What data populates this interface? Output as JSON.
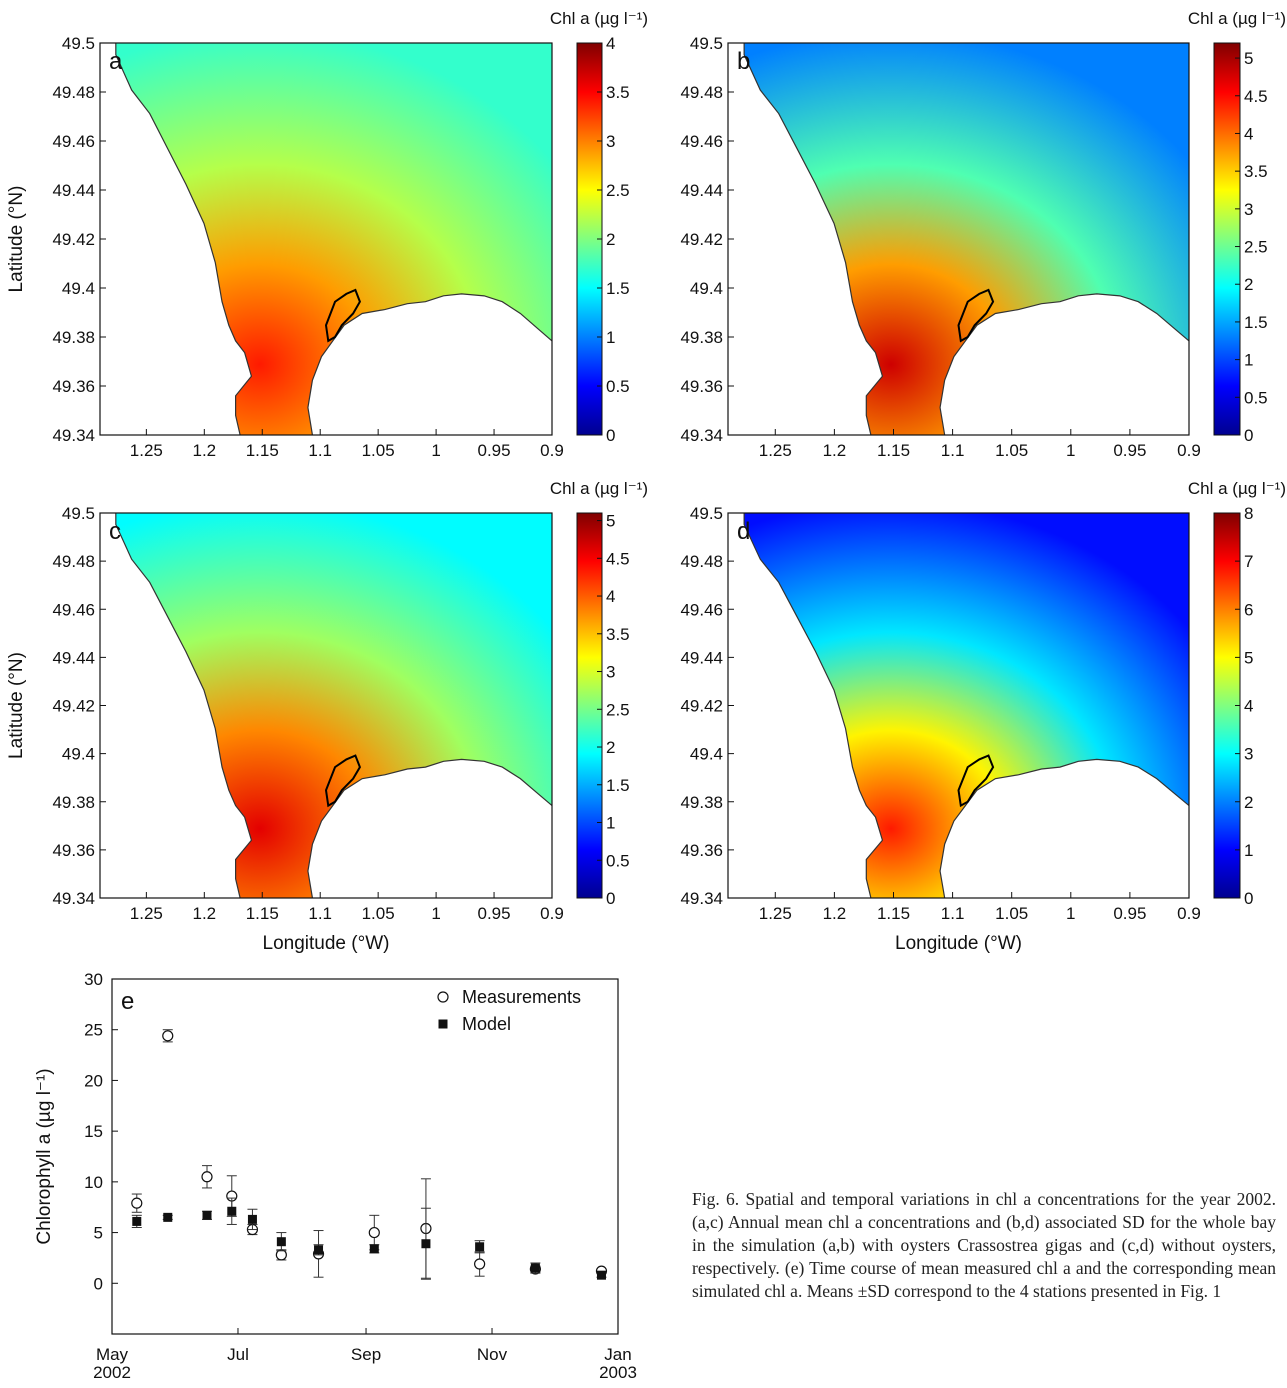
{
  "chart_data": [
    {
      "panel": "a",
      "type": "heatmap",
      "colorbar_title": "Chl a (µg l⁻¹)",
      "colorbar_ticks": [
        "0",
        "0.5",
        "1",
        "1.5",
        "2",
        "2.5",
        "3",
        "3.5",
        "4"
      ],
      "colorbar_range": [
        0,
        4
      ],
      "ylabel": "Latitude (°N)",
      "xlabel": "",
      "xticks": [
        "1.25",
        "1.2",
        "1.15",
        "1.1",
        "1.05",
        "1",
        "0.95",
        "0.9"
      ],
      "yticks": [
        "49.34",
        "49.36",
        "49.38",
        "49.4",
        "49.42",
        "49.44",
        "49.46",
        "49.48",
        "49.5"
      ],
      "xlim": [
        1.29,
        0.9
      ],
      "ylim": [
        49.34,
        49.5
      ],
      "offshore_value": 1.7,
      "nearshore_value": 3.4
    },
    {
      "panel": "b",
      "type": "heatmap",
      "colorbar_title": "Chl a (µg l⁻¹)",
      "colorbar_ticks": [
        "0",
        "0.5",
        "1",
        "1.5",
        "2",
        "2.5",
        "3",
        "3.5",
        "4",
        "4.5",
        "5"
      ],
      "colorbar_range": [
        0,
        5.2
      ],
      "ylabel": "",
      "xlabel": "",
      "xticks": [
        "1.25",
        "1.2",
        "1.15",
        "1.1",
        "1.05",
        "1",
        "0.95",
        "0.9"
      ],
      "yticks": [
        "49.34",
        "49.36",
        "49.38",
        "49.4",
        "49.42",
        "49.44",
        "49.46",
        "49.48",
        "49.5"
      ],
      "xlim": [
        1.29,
        0.9
      ],
      "ylim": [
        49.34,
        49.5
      ],
      "offshore_value": 1.3,
      "nearshore_value": 4.8
    },
    {
      "panel": "c",
      "type": "heatmap",
      "colorbar_title": "Chl a (µg l⁻¹)",
      "colorbar_ticks": [
        "0",
        "0.5",
        "1",
        "1.5",
        "2",
        "2.5",
        "3",
        "3.5",
        "4",
        "4.5",
        "5"
      ],
      "colorbar_range": [
        0,
        5.1
      ],
      "ylabel": "Latitude (°N)",
      "xlabel": "Longitude (°W)",
      "xticks": [
        "1.25",
        "1.2",
        "1.15",
        "1.1",
        "1.05",
        "1",
        "0.95",
        "0.9"
      ],
      "yticks": [
        "49.34",
        "49.36",
        "49.38",
        "49.4",
        "49.42",
        "49.44",
        "49.46",
        "49.48",
        "49.5"
      ],
      "xlim": [
        1.29,
        0.9
      ],
      "ylim": [
        49.34,
        49.5
      ],
      "offshore_value": 1.9,
      "nearshore_value": 4.6
    },
    {
      "panel": "d",
      "type": "heatmap",
      "colorbar_title": "Chl a (µg l⁻¹)",
      "colorbar_ticks": [
        "0",
        "1",
        "2",
        "3",
        "4",
        "5",
        "6",
        "7",
        "8"
      ],
      "colorbar_range": [
        0,
        8
      ],
      "ylabel": "",
      "xlabel": "Longitude (°W)",
      "xticks": [
        "1.25",
        "1.2",
        "1.15",
        "1.1",
        "1.05",
        "1",
        "0.95",
        "0.9"
      ],
      "yticks": [
        "49.34",
        "49.36",
        "49.38",
        "49.4",
        "49.42",
        "49.44",
        "49.46",
        "49.48",
        "49.5"
      ],
      "xlim": [
        1.29,
        0.9
      ],
      "ylim": [
        49.34,
        49.5
      ],
      "offshore_value": 1.1,
      "nearshore_value": 6.8
    },
    {
      "panel": "e",
      "type": "scatter",
      "ylabel": "Chlorophyll a (µg l⁻¹)",
      "xlabel": "",
      "xtick_labels": [
        [
          "May",
          "2002"
        ],
        [
          "Jul",
          ""
        ],
        [
          "Sep",
          ""
        ],
        [
          "Nov",
          ""
        ],
        [
          "Jan",
          "2003"
        ]
      ],
      "xtick_dates": [
        "2002-05-01",
        "2002-07-01",
        "2002-09-01",
        "2002-11-01",
        "2003-01-01"
      ],
      "xlim": [
        "2002-05-01",
        "2003-01-01"
      ],
      "yticks": [
        "0",
        "5",
        "10",
        "15",
        "20",
        "25",
        "30"
      ],
      "ylim": [
        -5,
        30
      ],
      "series": [
        {
          "name": "Measurements",
          "marker": "open-circle",
          "x": [
            "2002-05-13",
            "2002-05-28",
            "2002-06-16",
            "2002-06-28",
            "2002-07-08",
            "2002-07-22",
            "2002-08-09",
            "2002-09-05",
            "2002-09-30",
            "2002-10-26",
            "2002-11-22",
            "2002-12-24"
          ],
          "y": [
            7.9,
            24.4,
            10.5,
            8.6,
            5.3,
            2.8,
            2.9,
            5.0,
            5.4,
            1.9,
            1.4,
            1.2
          ],
          "err": [
            0.9,
            0.6,
            1.1,
            2.0,
            0.5,
            0.5,
            2.3,
            1.7,
            4.9,
            1.2,
            0.3,
            0.2
          ]
        },
        {
          "name": "Model",
          "marker": "filled-square",
          "x": [
            "2002-05-13",
            "2002-05-28",
            "2002-06-16",
            "2002-06-28",
            "2002-07-08",
            "2002-07-22",
            "2002-08-09",
            "2002-09-05",
            "2002-09-30",
            "2002-10-26",
            "2002-11-22",
            "2002-12-24"
          ],
          "y": [
            6.1,
            6.5,
            6.7,
            7.1,
            6.3,
            4.1,
            3.3,
            3.4,
            3.9,
            3.6,
            1.5,
            0.8
          ],
          "err": [
            0.6,
            0.2,
            0.4,
            1.3,
            1.0,
            0.9,
            0.5,
            0.4,
            3.5,
            0.6,
            0.5,
            0.2
          ]
        }
      ]
    }
  ],
  "caption": "Fig. 6. Spatial and temporal variations in chl a concentrations for the year 2002. (a,c) Annual mean chl a concentrations and (b,d) associated SD for the whole bay in the simulation (a,b) with oysters Crassostrea gigas and (c,d) without oysters, respectively. (e) Time course of mean measured chl a and the corresponding mean simulated chl a. Means ±SD correspond to the 4 stations presented in Fig. 1",
  "colors": {
    "jet_stops": [
      "#00008f",
      "#0000ff",
      "#0080ff",
      "#00ffff",
      "#80ff80",
      "#ffff00",
      "#ff8000",
      "#ff0000",
      "#800000"
    ],
    "oyster_outline": "#000000",
    "land": "#ffffff"
  }
}
